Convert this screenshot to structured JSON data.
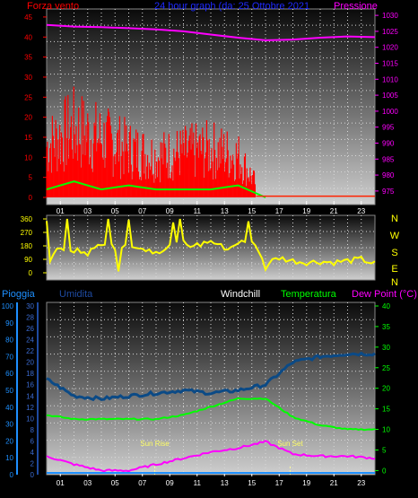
{
  "header": {
    "left_label": "Forza vento",
    "center_label": "24 hour graph (da:  25 Ottobre 2021",
    "right_label": "Pressione"
  },
  "colors": {
    "wind": "#ff0000",
    "wind_avg": "#00ff00",
    "pressure": "#ff00ff",
    "direction": "#ffff00",
    "humidity": "#0b4a86",
    "temperature": "#00ff00",
    "dewpoint": "#ff00ff",
    "rain": "#1e90ff",
    "axis_blue": "#1e90ff",
    "axis_text_red": "#ff0000"
  },
  "chart_data": [
    {
      "type": "line",
      "name": "wind_pressure",
      "x_ticks": [
        "01",
        "03",
        "05",
        "07",
        "09",
        "11",
        "13",
        "15",
        "17",
        "19",
        "21",
        "23"
      ],
      "x": [
        0,
        2,
        4,
        6,
        8,
        10,
        12,
        14,
        16,
        18,
        20,
        22,
        24
      ],
      "y_left": {
        "label": "Forza vento",
        "ticks": [
          "0",
          "5",
          "10",
          "15",
          "20",
          "25",
          "30",
          "35",
          "40",
          "45"
        ],
        "range": [
          0,
          47
        ]
      },
      "y_right": {
        "label": "Pressione",
        "ticks": [
          "975",
          "980",
          "985",
          "990",
          "995",
          "1000",
          "1005",
          "1010",
          "1015",
          "1020",
          "1025",
          "1030"
        ],
        "range": [
          973,
          1032
        ]
      },
      "series": [
        {
          "key": "pressure",
          "values": [
            1027,
            1026.5,
            1026.3,
            1026,
            1025.6,
            1025,
            1024,
            1023,
            1022.2,
            1022.4,
            1023,
            1023.4,
            1023.2
          ]
        },
        {
          "key": "wind_avg",
          "values": [
            2,
            4,
            2,
            3,
            2,
            2,
            2,
            3,
            0,
            0,
            0,
            0,
            0
          ]
        },
        {
          "key": "wind_gust",
          "values": [
            15,
            20,
            17,
            14,
            12,
            13,
            14,
            12,
            0,
            0,
            0,
            0,
            0
          ]
        }
      ]
    },
    {
      "type": "scatter",
      "name": "wind_direction",
      "y_left": {
        "ticks": [
          "0",
          "90",
          "180",
          "270",
          "360"
        ],
        "range": [
          0,
          360
        ]
      },
      "y_right": {
        "ticks": [
          "N",
          "W",
          "S",
          "E",
          "N"
        ]
      },
      "x": [
        0,
        1,
        2,
        3,
        4,
        5,
        6,
        7,
        8,
        9,
        10,
        11,
        12,
        13,
        14,
        15,
        16,
        17,
        18,
        19,
        20,
        21,
        22,
        23,
        24
      ],
      "values": [
        60,
        170,
        150,
        130,
        200,
        170,
        200,
        160,
        140,
        180,
        200,
        180,
        220,
        160,
        200,
        210,
        60,
        100,
        80,
        70,
        75,
        70,
        80,
        90,
        60
      ]
    },
    {
      "type": "line",
      "name": "humidity_temperature",
      "x_ticks": [
        "01",
        "03",
        "05",
        "07",
        "09",
        "11",
        "13",
        "15",
        "17",
        "19",
        "21",
        "23"
      ],
      "x": [
        0,
        2,
        4,
        6,
        8,
        10,
        12,
        14,
        16,
        18,
        20,
        22,
        24
      ],
      "legend": [
        "Pioggia",
        "Umidita",
        "Windchill",
        "Temperatura",
        "Dew Point (°C)"
      ],
      "y_left_rain": {
        "label": "Pioggia",
        "ticks": [
          "0",
          "10",
          "20",
          "30",
          "40",
          "50",
          "60",
          "70",
          "80",
          "90",
          "100"
        ],
        "range": [
          0,
          100
        ]
      },
      "y_left_hum": {
        "label": "Umidita",
        "ticks": [
          "0",
          "2",
          "4",
          "6",
          "8",
          "10",
          "12",
          "14",
          "16",
          "18",
          "20",
          "22",
          "24",
          "26",
          "28",
          "30"
        ],
        "range": [
          0,
          30
        ]
      },
      "y_right": {
        "label": "Dew Point (°C)",
        "ticks": [
          "0",
          "5",
          "10",
          "15",
          "20",
          "25",
          "30",
          "35",
          "40"
        ],
        "range": [
          -1,
          40
        ]
      },
      "series": [
        {
          "key": "humidity",
          "values": [
            17,
            14,
            13.5,
            14,
            14.5,
            15,
            14.5,
            15,
            16,
            20,
            21,
            21.5,
            21.5
          ]
        },
        {
          "key": "temperature",
          "values": [
            13.5,
            12.5,
            12.5,
            12.5,
            12.5,
            13.5,
            15.5,
            17.5,
            17.5,
            13,
            11,
            10,
            10
          ]
        },
        {
          "key": "dewpoint",
          "values": [
            3.5,
            1.5,
            0,
            0,
            1.5,
            3,
            4.5,
            5.5,
            7,
            4,
            3.5,
            3.5,
            3
          ]
        },
        {
          "key": "rain",
          "values": [
            0,
            0,
            0,
            0,
            0,
            0,
            0,
            0,
            0,
            0,
            0,
            0,
            0
          ]
        }
      ],
      "annotations": [
        {
          "label": "Sun Rise",
          "x": 7.9
        },
        {
          "label": "Sun Set",
          "x": 17.8
        }
      ]
    }
  ]
}
